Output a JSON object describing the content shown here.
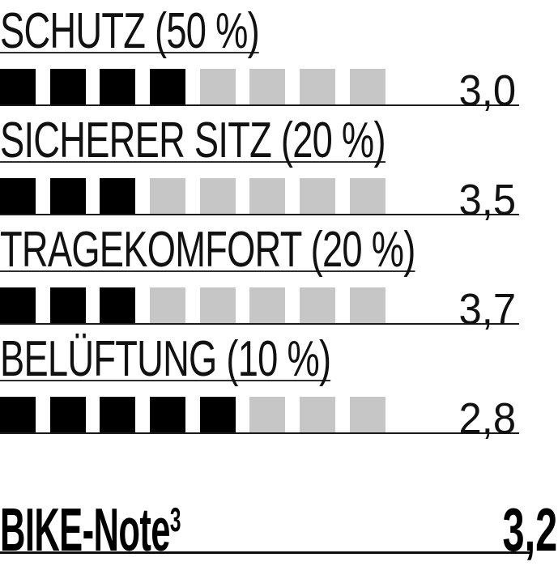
{
  "colors": {
    "square_filled": "#000000",
    "square_empty": "#c6c6c6",
    "text": "#111111",
    "underline": "#2e2e2e",
    "baseline": "#1a1a1a",
    "total_line": "#0c0c0c"
  },
  "chart_data": {
    "type": "bar",
    "subtype": "rating-squares",
    "total_squares": 8,
    "legend_position": "none",
    "rows": [
      {
        "label": "SCHUTZ (50 %)",
        "filled_squares": 4,
        "value": 3.0,
        "value_text": "3,0"
      },
      {
        "label": "SICHERER SITZ (20 %)",
        "filled_squares": 3,
        "value": 3.5,
        "value_text": "3,5"
      },
      {
        "label": "TRAGEKOMFORT (20 %)",
        "filled_squares": 3,
        "value": 3.7,
        "value_text": "3,7"
      },
      {
        "label": "BELÜFTUNG (10 %)",
        "filled_squares": 5,
        "value": 2.8,
        "value_text": "2,8"
      }
    ],
    "summary": {
      "label": "BIKE-Note",
      "superscript": "3",
      "value": 3.2,
      "value_text": "3,2"
    }
  }
}
